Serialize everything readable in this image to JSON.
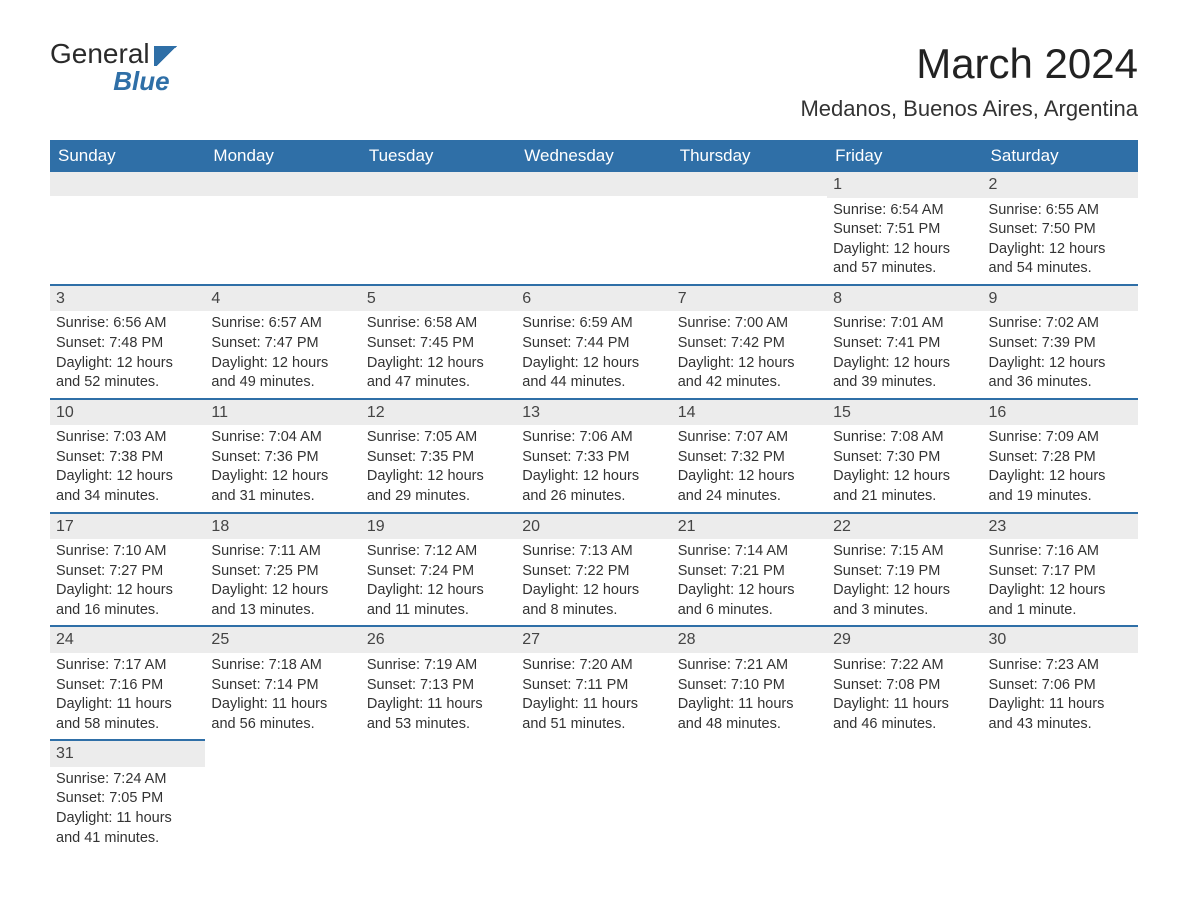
{
  "logo": {
    "line1": "General",
    "line2": "Blue"
  },
  "title": "March 2024",
  "subtitle": "Medanos, Buenos Aires, Argentina",
  "colors": {
    "header_bg": "#2f6fa7",
    "header_text": "#ffffff",
    "daynum_bg": "#ececec",
    "border": "#2f6fa7",
    "text": "#333333"
  },
  "weekdays": [
    "Sunday",
    "Monday",
    "Tuesday",
    "Wednesday",
    "Thursday",
    "Friday",
    "Saturday"
  ],
  "weeks": [
    [
      {
        "day": "",
        "sunrise": "",
        "sunset": "",
        "daylight": ""
      },
      {
        "day": "",
        "sunrise": "",
        "sunset": "",
        "daylight": ""
      },
      {
        "day": "",
        "sunrise": "",
        "sunset": "",
        "daylight": ""
      },
      {
        "day": "",
        "sunrise": "",
        "sunset": "",
        "daylight": ""
      },
      {
        "day": "",
        "sunrise": "",
        "sunset": "",
        "daylight": ""
      },
      {
        "day": "1",
        "sunrise": "Sunrise: 6:54 AM",
        "sunset": "Sunset: 7:51 PM",
        "daylight": "Daylight: 12 hours and 57 minutes."
      },
      {
        "day": "2",
        "sunrise": "Sunrise: 6:55 AM",
        "sunset": "Sunset: 7:50 PM",
        "daylight": "Daylight: 12 hours and 54 minutes."
      }
    ],
    [
      {
        "day": "3",
        "sunrise": "Sunrise: 6:56 AM",
        "sunset": "Sunset: 7:48 PM",
        "daylight": "Daylight: 12 hours and 52 minutes."
      },
      {
        "day": "4",
        "sunrise": "Sunrise: 6:57 AM",
        "sunset": "Sunset: 7:47 PM",
        "daylight": "Daylight: 12 hours and 49 minutes."
      },
      {
        "day": "5",
        "sunrise": "Sunrise: 6:58 AM",
        "sunset": "Sunset: 7:45 PM",
        "daylight": "Daylight: 12 hours and 47 minutes."
      },
      {
        "day": "6",
        "sunrise": "Sunrise: 6:59 AM",
        "sunset": "Sunset: 7:44 PM",
        "daylight": "Daylight: 12 hours and 44 minutes."
      },
      {
        "day": "7",
        "sunrise": "Sunrise: 7:00 AM",
        "sunset": "Sunset: 7:42 PM",
        "daylight": "Daylight: 12 hours and 42 minutes."
      },
      {
        "day": "8",
        "sunrise": "Sunrise: 7:01 AM",
        "sunset": "Sunset: 7:41 PM",
        "daylight": "Daylight: 12 hours and 39 minutes."
      },
      {
        "day": "9",
        "sunrise": "Sunrise: 7:02 AM",
        "sunset": "Sunset: 7:39 PM",
        "daylight": "Daylight: 12 hours and 36 minutes."
      }
    ],
    [
      {
        "day": "10",
        "sunrise": "Sunrise: 7:03 AM",
        "sunset": "Sunset: 7:38 PM",
        "daylight": "Daylight: 12 hours and 34 minutes."
      },
      {
        "day": "11",
        "sunrise": "Sunrise: 7:04 AM",
        "sunset": "Sunset: 7:36 PM",
        "daylight": "Daylight: 12 hours and 31 minutes."
      },
      {
        "day": "12",
        "sunrise": "Sunrise: 7:05 AM",
        "sunset": "Sunset: 7:35 PM",
        "daylight": "Daylight: 12 hours and 29 minutes."
      },
      {
        "day": "13",
        "sunrise": "Sunrise: 7:06 AM",
        "sunset": "Sunset: 7:33 PM",
        "daylight": "Daylight: 12 hours and 26 minutes."
      },
      {
        "day": "14",
        "sunrise": "Sunrise: 7:07 AM",
        "sunset": "Sunset: 7:32 PM",
        "daylight": "Daylight: 12 hours and 24 minutes."
      },
      {
        "day": "15",
        "sunrise": "Sunrise: 7:08 AM",
        "sunset": "Sunset: 7:30 PM",
        "daylight": "Daylight: 12 hours and 21 minutes."
      },
      {
        "day": "16",
        "sunrise": "Sunrise: 7:09 AM",
        "sunset": "Sunset: 7:28 PM",
        "daylight": "Daylight: 12 hours and 19 minutes."
      }
    ],
    [
      {
        "day": "17",
        "sunrise": "Sunrise: 7:10 AM",
        "sunset": "Sunset: 7:27 PM",
        "daylight": "Daylight: 12 hours and 16 minutes."
      },
      {
        "day": "18",
        "sunrise": "Sunrise: 7:11 AM",
        "sunset": "Sunset: 7:25 PM",
        "daylight": "Daylight: 12 hours and 13 minutes."
      },
      {
        "day": "19",
        "sunrise": "Sunrise: 7:12 AM",
        "sunset": "Sunset: 7:24 PM",
        "daylight": "Daylight: 12 hours and 11 minutes."
      },
      {
        "day": "20",
        "sunrise": "Sunrise: 7:13 AM",
        "sunset": "Sunset: 7:22 PM",
        "daylight": "Daylight: 12 hours and 8 minutes."
      },
      {
        "day": "21",
        "sunrise": "Sunrise: 7:14 AM",
        "sunset": "Sunset: 7:21 PM",
        "daylight": "Daylight: 12 hours and 6 minutes."
      },
      {
        "day": "22",
        "sunrise": "Sunrise: 7:15 AM",
        "sunset": "Sunset: 7:19 PM",
        "daylight": "Daylight: 12 hours and 3 minutes."
      },
      {
        "day": "23",
        "sunrise": "Sunrise: 7:16 AM",
        "sunset": "Sunset: 7:17 PM",
        "daylight": "Daylight: 12 hours and 1 minute."
      }
    ],
    [
      {
        "day": "24",
        "sunrise": "Sunrise: 7:17 AM",
        "sunset": "Sunset: 7:16 PM",
        "daylight": "Daylight: 11 hours and 58 minutes."
      },
      {
        "day": "25",
        "sunrise": "Sunrise: 7:18 AM",
        "sunset": "Sunset: 7:14 PM",
        "daylight": "Daylight: 11 hours and 56 minutes."
      },
      {
        "day": "26",
        "sunrise": "Sunrise: 7:19 AM",
        "sunset": "Sunset: 7:13 PM",
        "daylight": "Daylight: 11 hours and 53 minutes."
      },
      {
        "day": "27",
        "sunrise": "Sunrise: 7:20 AM",
        "sunset": "Sunset: 7:11 PM",
        "daylight": "Daylight: 11 hours and 51 minutes."
      },
      {
        "day": "28",
        "sunrise": "Sunrise: 7:21 AM",
        "sunset": "Sunset: 7:10 PM",
        "daylight": "Daylight: 11 hours and 48 minutes."
      },
      {
        "day": "29",
        "sunrise": "Sunrise: 7:22 AM",
        "sunset": "Sunset: 7:08 PM",
        "daylight": "Daylight: 11 hours and 46 minutes."
      },
      {
        "day": "30",
        "sunrise": "Sunrise: 7:23 AM",
        "sunset": "Sunset: 7:06 PM",
        "daylight": "Daylight: 11 hours and 43 minutes."
      }
    ],
    [
      {
        "day": "31",
        "sunrise": "Sunrise: 7:24 AM",
        "sunset": "Sunset: 7:05 PM",
        "daylight": "Daylight: 11 hours and 41 minutes."
      },
      {
        "day": "",
        "sunrise": "",
        "sunset": "",
        "daylight": ""
      },
      {
        "day": "",
        "sunrise": "",
        "sunset": "",
        "daylight": ""
      },
      {
        "day": "",
        "sunrise": "",
        "sunset": "",
        "daylight": ""
      },
      {
        "day": "",
        "sunrise": "",
        "sunset": "",
        "daylight": ""
      },
      {
        "day": "",
        "sunrise": "",
        "sunset": "",
        "daylight": ""
      },
      {
        "day": "",
        "sunrise": "",
        "sunset": "",
        "daylight": ""
      }
    ]
  ]
}
